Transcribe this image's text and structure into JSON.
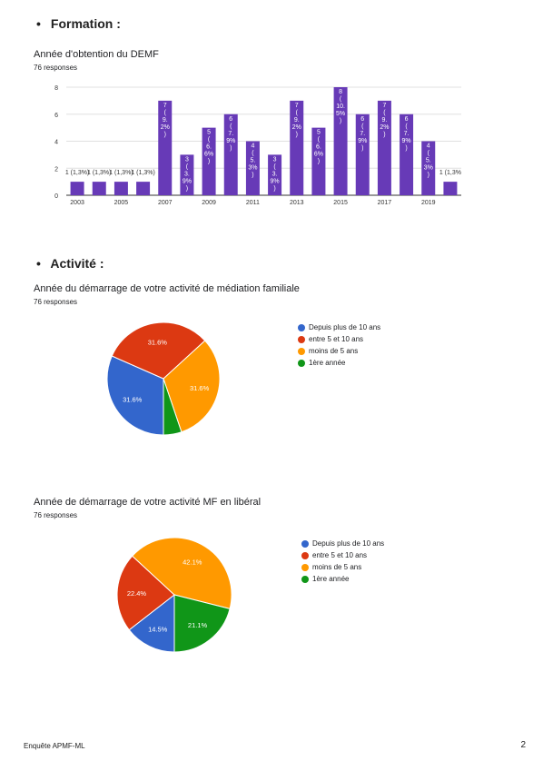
{
  "sections": {
    "formation": "Formation :",
    "activite": "Activité :"
  },
  "colors": {
    "bar": "#673ab7",
    "blue": "#3366cc",
    "red": "#dc3912",
    "orange": "#ff9900",
    "green": "#109618"
  },
  "chart_data": [
    {
      "type": "bar",
      "title": "Année d'obtention du DEMF",
      "subtitle": "76 responses",
      "x": [
        2003,
        2004,
        2005,
        2006,
        2007,
        2008,
        2009,
        2010,
        2011,
        2012,
        2013,
        2014,
        2015,
        2016,
        2017,
        2018,
        2019,
        2020
      ],
      "x_ticks": [
        "2003",
        "2005",
        "2007",
        "2009",
        "2011",
        "2013",
        "2015",
        "2017",
        "2019"
      ],
      "values": [
        1,
        1,
        1,
        1,
        7,
        3,
        5,
        6,
        4,
        3,
        7,
        5,
        8,
        6,
        7,
        6,
        4,
        1
      ],
      "data_labels": [
        "1 (1,3%)",
        "1 (1,3%)",
        "1 (1,3%)",
        "1 (1,3%)",
        "7 ( 9. 2% )",
        "3 ( 3. 9% )",
        "5 ( 6. 6% )",
        "6 ( 7. 9% )",
        "4 ( 5. 3% )",
        "3 ( 3. 9% )",
        "7 ( 9. 2% )",
        "5 ( 6. 6% )",
        "8 ( 10. 5% )",
        "6 ( 7. 9% )",
        "7 ( 9. 2% )",
        "6 ( 7. 9% )",
        "4 ( 5. 3% )",
        "1 (1,3%"
      ],
      "y_ticks": [
        0,
        2,
        4,
        6,
        8
      ],
      "ylim": [
        0,
        8
      ],
      "grid": true
    },
    {
      "type": "pie",
      "title": "Année du démarrage de votre activité de médiation familiale",
      "subtitle": "76 responses",
      "slices": [
        {
          "label": "Depuis plus de 10 ans",
          "value": 31.6,
          "color": "#3366cc",
          "text": "31.6%"
        },
        {
          "label": "entre 5 et 10 ans",
          "value": 31.6,
          "color": "#dc3912",
          "text": "31.6%"
        },
        {
          "label": "moins de 5 ans",
          "value": 31.6,
          "color": "#ff9900",
          "text": "31.6%"
        },
        {
          "label": "1ère année",
          "value": 5.2,
          "color": "#109618",
          "text": ""
        }
      ],
      "legend_position": "right"
    },
    {
      "type": "pie",
      "title": "Année de démarrage de votre activité MF en libéral",
      "subtitle": "76 responses",
      "slices": [
        {
          "label": "Depuis plus de 10 ans",
          "value": 14.5,
          "color": "#3366cc",
          "text": "14.5%"
        },
        {
          "label": "entre 5 et 10 ans",
          "value": 22.4,
          "color": "#dc3912",
          "text": "22.4%"
        },
        {
          "label": "moins de 5 ans",
          "value": 42.1,
          "color": "#ff9900",
          "text": "42.1%"
        },
        {
          "label": "1ère année",
          "value": 21.1,
          "color": "#109618",
          "text": "21.1%"
        }
      ],
      "legend_position": "right"
    }
  ],
  "footer": {
    "left": "Enquête APMF-ML",
    "page": "2"
  }
}
